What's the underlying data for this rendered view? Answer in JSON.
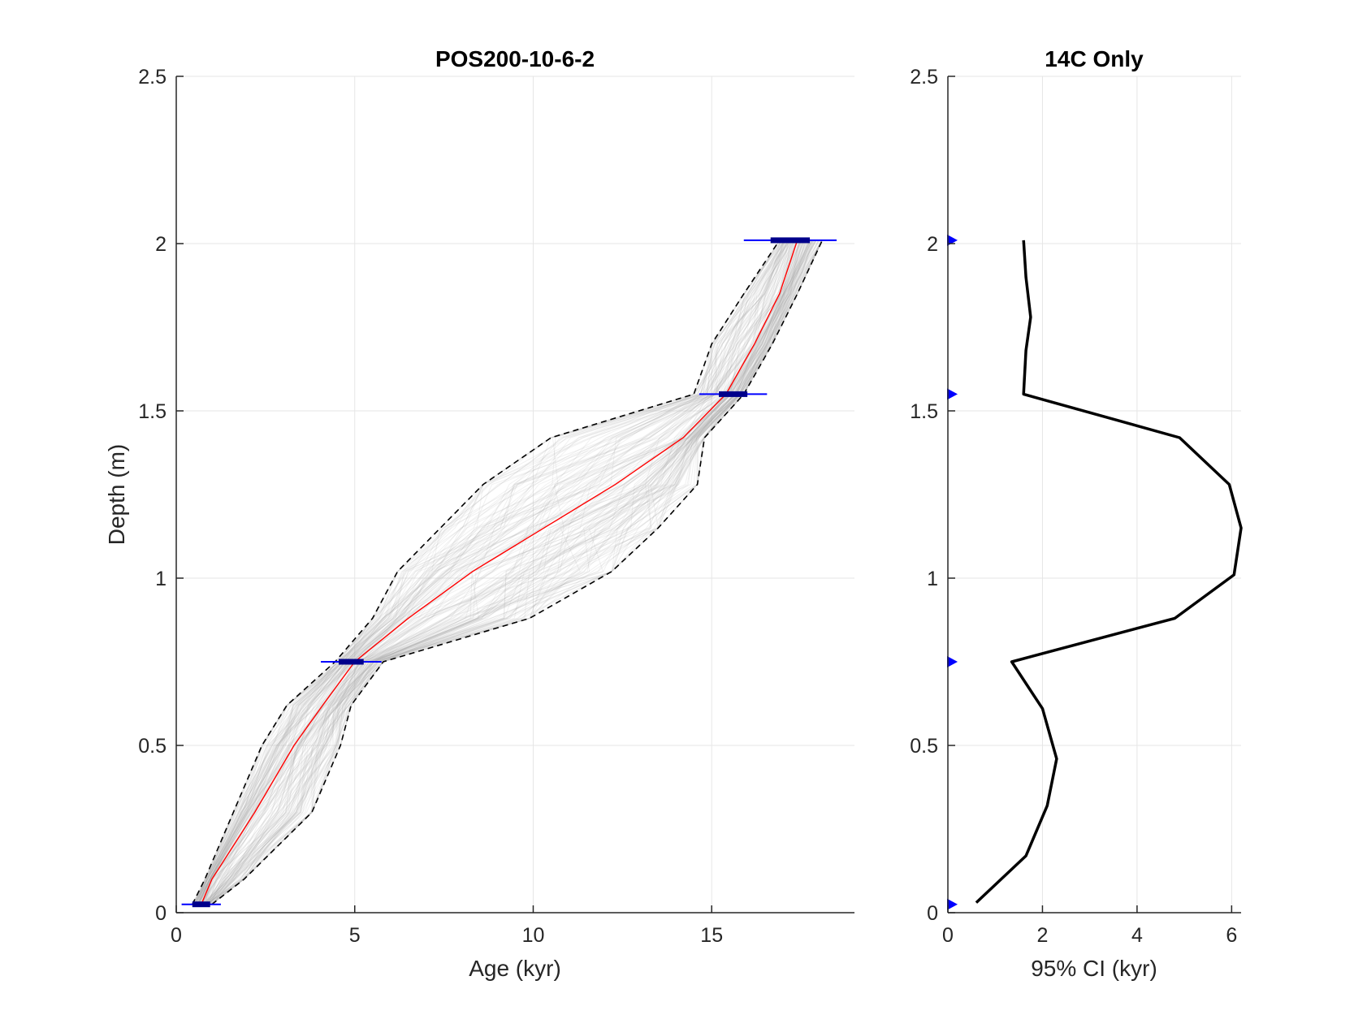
{
  "colors": {
    "median": "#ff0000",
    "ensemble": "#a6a6a6",
    "ci_bounds": "#000000",
    "dates": "#0000ff",
    "ci_width": "#000000",
    "grid": "#e6e6e6",
    "axis": "#262626"
  },
  "chart_data": [
    {
      "type": "line",
      "title": "POS200-10-6-2",
      "xlabel": "Age (kyr)",
      "ylabel": "Depth (m)",
      "xlim": [
        0,
        19
      ],
      "ylim": [
        0,
        2.5
      ],
      "y_reversed": false,
      "grid": true,
      "x_ticks": [
        0,
        5,
        10,
        15
      ],
      "y_ticks": [
        0,
        0.5,
        1,
        1.5,
        2,
        2.5
      ],
      "x_tick_labels": [
        "0",
        "5",
        "10",
        "15"
      ],
      "y_tick_labels": [
        "0",
        "0.5",
        "1",
        "1.5",
        "2",
        "2.5"
      ],
      "series": [
        {
          "role": "median",
          "depth": [
            0.025,
            0.1,
            0.3,
            0.5,
            0.62,
            0.75,
            0.88,
            1.02,
            1.15,
            1.28,
            1.42,
            1.55,
            1.7,
            1.85,
            2.01
          ],
          "age": [
            0.7,
            1.0,
            2.2,
            3.3,
            4.1,
            5.0,
            6.5,
            8.3,
            10.3,
            12.3,
            14.2,
            15.4,
            16.2,
            16.9,
            17.4
          ]
        },
        {
          "role": "ci-lower",
          "depth": [
            0.025,
            0.1,
            0.3,
            0.5,
            0.62,
            0.75,
            0.88,
            1.02,
            1.15,
            1.28,
            1.42,
            1.55,
            1.7,
            1.85,
            2.01
          ],
          "age": [
            0.45,
            0.8,
            1.6,
            2.4,
            3.1,
            4.45,
            5.5,
            6.2,
            7.4,
            8.6,
            10.5,
            14.5,
            15.0,
            15.9,
            16.9
          ]
        },
        {
          "role": "ci-upper",
          "depth": [
            0.025,
            0.1,
            0.3,
            0.5,
            0.62,
            0.75,
            0.88,
            1.02,
            1.15,
            1.28,
            1.42,
            1.55,
            1.7,
            1.85,
            2.01
          ],
          "age": [
            1.0,
            1.9,
            3.8,
            4.6,
            4.9,
            5.8,
            9.9,
            12.2,
            13.5,
            14.6,
            14.8,
            15.9,
            16.7,
            17.4,
            18.1
          ]
        }
      ],
      "dates": [
        {
          "depth": 0.025,
          "age": 0.7,
          "err_inner": 0.25,
          "err_outer": 0.55
        },
        {
          "depth": 0.75,
          "age": 4.9,
          "err_inner": 0.35,
          "err_outer": 0.85
        },
        {
          "depth": 1.55,
          "age": 15.6,
          "err_inner": 0.4,
          "err_outer": 0.95
        },
        {
          "depth": 2.01,
          "age": 17.2,
          "err_inner": 0.55,
          "err_outer": 1.3
        }
      ]
    },
    {
      "type": "line",
      "title": "14C Only",
      "xlabel": "95% CI (kyr)",
      "ylabel": "",
      "xlim": [
        0,
        6.2
      ],
      "ylim": [
        0,
        2.5
      ],
      "grid": true,
      "x_ticks": [
        0,
        2,
        4,
        6
      ],
      "y_ticks": [
        0,
        0.5,
        1,
        1.5,
        2,
        2.5
      ],
      "x_tick_labels": [
        "0",
        "2",
        "4",
        "6"
      ],
      "y_tick_labels": [
        "0",
        "0.5",
        "1",
        "1.5",
        "2",
        "2.5"
      ],
      "series": [
        {
          "role": "ci-width",
          "depth": [
            0.03,
            0.17,
            0.32,
            0.46,
            0.61,
            0.75,
            0.88,
            1.01,
            1.15,
            1.28,
            1.42,
            1.55,
            1.68,
            1.78,
            1.9,
            2.01
          ],
          "ci": [
            0.6,
            1.65,
            2.1,
            2.3,
            2.0,
            1.35,
            4.8,
            6.05,
            6.2,
            5.95,
            4.9,
            1.6,
            1.65,
            1.75,
            1.65,
            1.6
          ]
        }
      ],
      "date_markers_depth": [
        0.025,
        0.75,
        1.55,
        2.01
      ]
    }
  ]
}
